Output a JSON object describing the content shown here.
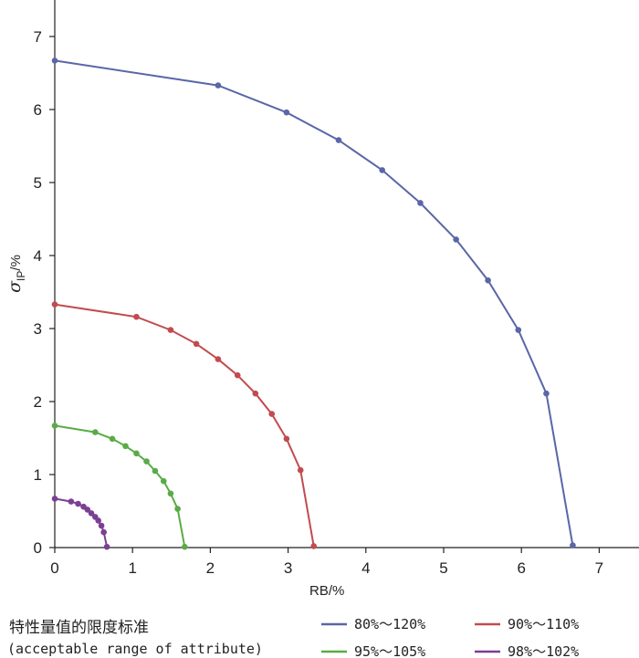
{
  "chart_data": {
    "type": "line",
    "xlabel": "RB/%",
    "ylabel_symbol": "σ",
    "ylabel_subscript": "IP",
    "ylabel_suffix": "/%",
    "xlim": [
      0,
      7.5
    ],
    "ylim": [
      0,
      7.5
    ],
    "xticks": [
      0,
      1,
      2,
      3,
      4,
      5,
      6,
      7
    ],
    "yticks": [
      0,
      1,
      2,
      3,
      4,
      5,
      6,
      7
    ],
    "legend_title": "特性量值的限度标准",
    "legend_subtitle": "(acceptable range of attribute)",
    "series": [
      {
        "name": "80%～120%",
        "color": "#5a66a8",
        "points": [
          [
            0,
            6.67
          ],
          [
            2.1,
            6.33
          ],
          [
            2.98,
            5.96
          ],
          [
            3.65,
            5.58
          ],
          [
            4.21,
            5.17
          ],
          [
            4.7,
            4.72
          ],
          [
            5.16,
            4.22
          ],
          [
            5.57,
            3.66
          ],
          [
            5.96,
            2.98
          ],
          [
            6.32,
            2.11
          ],
          [
            6.66,
            0.03
          ]
        ]
      },
      {
        "name": "90%～110%",
        "color": "#c24b4f",
        "points": [
          [
            0,
            3.33
          ],
          [
            1.05,
            3.16
          ],
          [
            1.49,
            2.98
          ],
          [
            1.82,
            2.79
          ],
          [
            2.1,
            2.58
          ],
          [
            2.35,
            2.36
          ],
          [
            2.58,
            2.11
          ],
          [
            2.79,
            1.83
          ],
          [
            2.98,
            1.49
          ],
          [
            3.16,
            1.06
          ],
          [
            3.33,
            0.02
          ]
        ]
      },
      {
        "name": "95%～105%",
        "color": "#5aab46",
        "points": [
          [
            0,
            1.67
          ],
          [
            0.52,
            1.58
          ],
          [
            0.74,
            1.49
          ],
          [
            0.91,
            1.39
          ],
          [
            1.05,
            1.29
          ],
          [
            1.18,
            1.18
          ],
          [
            1.29,
            1.05
          ],
          [
            1.4,
            0.91
          ],
          [
            1.49,
            0.74
          ],
          [
            1.58,
            0.53
          ],
          [
            1.67,
            0.01
          ]
        ]
      },
      {
        "name": "98%～102%",
        "color": "#7b3f94",
        "points": [
          [
            0,
            0.67
          ],
          [
            0.21,
            0.63
          ],
          [
            0.3,
            0.6
          ],
          [
            0.37,
            0.56
          ],
          [
            0.42,
            0.52
          ],
          [
            0.47,
            0.47
          ],
          [
            0.52,
            0.42
          ],
          [
            0.56,
            0.37
          ],
          [
            0.6,
            0.3
          ],
          [
            0.63,
            0.21
          ],
          [
            0.67,
            0.01
          ]
        ]
      }
    ]
  }
}
